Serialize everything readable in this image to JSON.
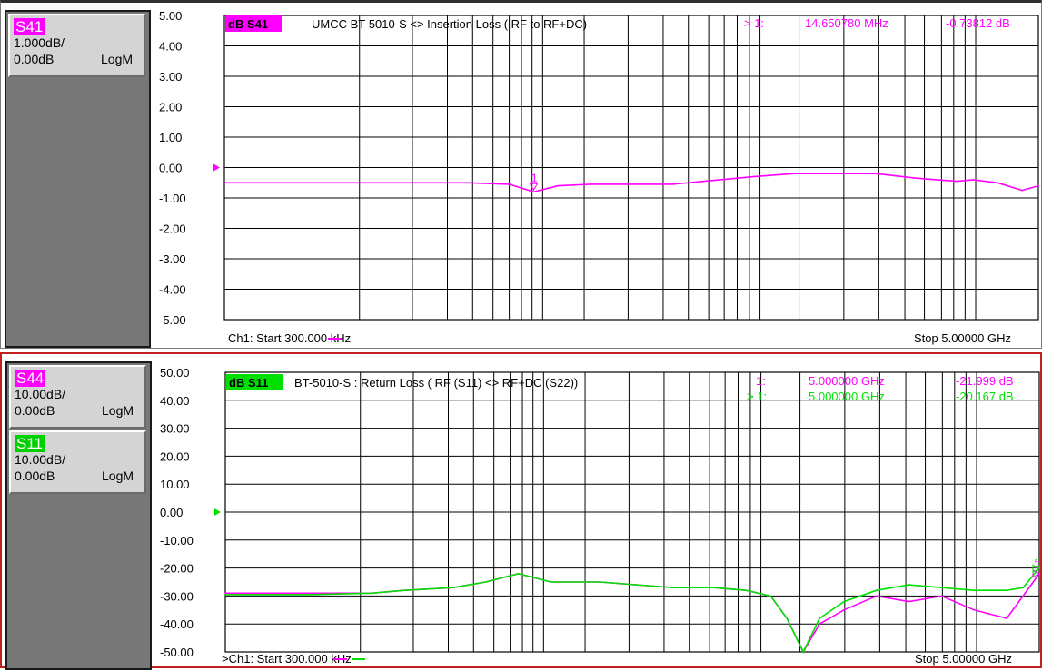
{
  "colors": {
    "s41": "#ff00ff",
    "s44": "#ff00ff",
    "s11": "#00e000",
    "grid": "#000000",
    "alarm_frame": "#c02020"
  },
  "window1": {
    "trace_box": {
      "name": "S41",
      "scale": "1.000dB/",
      "ref": "0.00dB",
      "format": "LogM"
    },
    "title_badge": "dB S41",
    "title": "UMCC  BT-5010-S <> Insertion Loss ( RF to RF+DC)",
    "marker_readout": {
      "id": "> 1:",
      "freq": "14.650780 MHz",
      "value": "-0.73812 dB"
    },
    "footer_start": "Ch1: Start  300.000 kHz",
    "footer_stop": "Stop  5.00000 GHz"
  },
  "window2": {
    "trace_boxes": [
      {
        "name": "S44",
        "scale": "10.00dB/",
        "ref": "0.00dB",
        "format": "LogM"
      },
      {
        "name": "S11",
        "scale": "10.00dB/",
        "ref": "0.00dB",
        "format": "LogM"
      }
    ],
    "title_badge": "dB S11",
    "title": "BT-5010-S : Return Loss ( RF (S11) <> RF+DC (S22))",
    "marker_readouts": [
      {
        "id": "1:",
        "freq": "5.000000 GHz",
        "value": "-21.999 dB"
      },
      {
        "id": "> 1:",
        "freq": "5.000000 GHz",
        "value": "-20.167 dB"
      }
    ],
    "footer_start": ">Ch1: Start  300.000 kHz",
    "footer_stop": "Stop  5.00000 GHz"
  },
  "chart_data": [
    {
      "type": "line",
      "title": "UMCC  BT-5010-S <> Insertion Loss ( RF to RF+DC)",
      "xrange": [
        "300.000 kHz",
        "5.00000 GHz"
      ],
      "x_fraction": [
        0.0,
        0.1,
        0.2,
        0.3,
        0.35,
        0.38,
        0.41,
        0.45,
        0.55,
        0.65,
        0.7,
        0.75,
        0.8,
        0.85,
        0.9,
        0.92,
        0.95,
        0.98,
        1.0
      ],
      "ylim": [
        -5,
        5
      ],
      "yticks": [
        "5.00",
        "4.00",
        "3.00",
        "2.00",
        "1.00",
        "0.00",
        "-1.00",
        "-2.00",
        "-3.00",
        "-4.00",
        "-5.00"
      ],
      "grid": true,
      "series": [
        {
          "name": "S41",
          "values": [
            -0.5,
            -0.5,
            -0.5,
            -0.5,
            -0.55,
            -0.8,
            -0.6,
            -0.55,
            -0.55,
            -0.3,
            -0.2,
            -0.2,
            -0.2,
            -0.35,
            -0.45,
            -0.4,
            -0.5,
            -0.75,
            -0.6
          ]
        }
      ],
      "marker": {
        "label": "1",
        "x_fraction": 0.38,
        "y": -0.74
      }
    },
    {
      "type": "line",
      "title": "BT-5010-S : Return Loss ( RF (S11) <> RF+DC (S22))",
      "xrange": [
        "300.000 kHz",
        "5.00000 GHz"
      ],
      "x_fraction": [
        0.0,
        0.1,
        0.18,
        0.22,
        0.28,
        0.32,
        0.36,
        0.4,
        0.46,
        0.55,
        0.6,
        0.64,
        0.67,
        0.69,
        0.71,
        0.73,
        0.76,
        0.8,
        0.84,
        0.88,
        0.92,
        0.96,
        0.98,
        1.0
      ],
      "ylim": [
        -50,
        50
      ],
      "yticks": [
        "50.00",
        "40.00",
        "30.00",
        "20.00",
        "10.00",
        "0.00",
        "-10.00",
        "-20.00",
        "-30.00",
        "-40.00",
        "-50.00"
      ],
      "grid": true,
      "series": [
        {
          "name": "S44",
          "values": [
            -29,
            -29,
            -29,
            -28,
            -27,
            -25,
            -22,
            -25,
            -25,
            -27,
            -27,
            -28,
            -30,
            -38,
            -50,
            -40,
            -35,
            -30,
            -32,
            -30,
            -35,
            -38,
            -30,
            -22
          ]
        },
        {
          "name": "S11",
          "values": [
            -29.5,
            -29.5,
            -29,
            -28,
            -27,
            -25,
            -22,
            -25,
            -25,
            -27,
            -27,
            -28,
            -30,
            -38,
            -50,
            -38,
            -32,
            -28,
            -26,
            -27,
            -28,
            -28,
            -27,
            -20
          ]
        }
      ],
      "markers": [
        {
          "label": "1",
          "x_fraction": 1.0,
          "y": -22.0
        },
        {
          "label": "1",
          "x_fraction": 1.0,
          "y": -20.2
        }
      ]
    }
  ]
}
